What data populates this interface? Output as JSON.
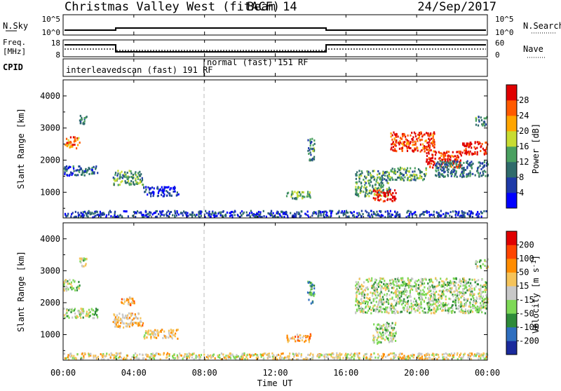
{
  "header": {
    "title": "Christmas Valley West (fitACF)",
    "beam": "Beam 14",
    "date": "24/Sep/2017"
  },
  "noise_panel": {
    "left_label": "N.Sky",
    "right_label": "N.Search",
    "left_ticks": [
      "10^5",
      "10^0"
    ],
    "right_ticks": [
      "10^5",
      "10^0"
    ]
  },
  "freq_panel": {
    "left_label_line1": "Freq.",
    "left_label_line2": "[MHz]",
    "right_label": "Nave",
    "left_ticks": [
      "18",
      "8"
    ],
    "right_ticks": [
      "60",
      "0"
    ]
  },
  "cpid_panel": {
    "label": "CPID",
    "segments": [
      {
        "label": "interleavedscan (fast) 191 RF",
        "start_h": 0,
        "end_h": 8
      },
      {
        "label": "normal (fast) 151 RF",
        "start_h": 8,
        "end_h": 24
      }
    ]
  },
  "power_colorbar": {
    "label": "Power [dB]",
    "ticks": [
      "4",
      "8",
      "12",
      "16",
      "20",
      "24",
      "28"
    ],
    "colors": [
      "#0000ff",
      "#1e3aa8",
      "#2f6b6b",
      "#4aa060",
      "#c8dc32",
      "#ffa500",
      "#ff5a00",
      "#e00000"
    ]
  },
  "velocity_colorbar": {
    "label": "Velocity [m s",
    "label_sup": "-1",
    "label_end": "]",
    "ticks": [
      "200",
      "100",
      "50",
      "15",
      "-15",
      "-50",
      "-100",
      "-200"
    ],
    "colors": [
      "#1a2a9c",
      "#2f6fbf",
      "#2e8b3a",
      "#7ed957",
      "#c8c8c8",
      "#f5c35a",
      "#ff8c00",
      "#ff4500",
      "#e00000"
    ]
  },
  "x_axis": {
    "label": "Time UT",
    "ticks": [
      "00:00",
      "04:00",
      "08:00",
      "12:00",
      "16:00",
      "20:00",
      "00:00"
    ]
  },
  "chart_data": [
    {
      "type": "heatmap",
      "title": "Power",
      "ylabel": "Slant Range [km]",
      "ylim": [
        200,
        4500
      ],
      "xlim": [
        0,
        24
      ],
      "y_ticks": [
        1000,
        2000,
        3000,
        4000
      ],
      "regions": [
        {
          "t0": 0.0,
          "t1": 0.9,
          "r0": 2400,
          "r1": 2750,
          "level": 0.75
        },
        {
          "t0": 0.9,
          "t1": 1.3,
          "r0": 3150,
          "r1": 3450,
          "level": 0.35
        },
        {
          "t0": 0.0,
          "t1": 2.0,
          "r0": 1550,
          "r1": 1850,
          "level": 0.25
        },
        {
          "t0": 2.8,
          "t1": 4.5,
          "r0": 1250,
          "r1": 1700,
          "level": 0.4
        },
        {
          "t0": 4.5,
          "t1": 6.5,
          "r0": 900,
          "r1": 1200,
          "level": 0.15
        },
        {
          "t0": 12.6,
          "t1": 14.0,
          "r0": 800,
          "r1": 1050,
          "level": 0.45
        },
        {
          "t0": 13.8,
          "t1": 14.2,
          "r0": 2000,
          "r1": 2700,
          "level": 0.35
        },
        {
          "t0": 16.5,
          "t1": 18.5,
          "r0": 900,
          "r1": 1700,
          "level": 0.4
        },
        {
          "t0": 17.5,
          "t1": 18.8,
          "r0": 750,
          "r1": 1100,
          "level": 0.95
        },
        {
          "t0": 18.5,
          "t1": 21.0,
          "r0": 2300,
          "r1": 2900,
          "level": 0.85
        },
        {
          "t0": 20.5,
          "t1": 22.5,
          "r0": 1800,
          "r1": 2300,
          "level": 0.9
        },
        {
          "t0": 22.5,
          "t1": 24.0,
          "r0": 2200,
          "r1": 2600,
          "level": 0.95
        },
        {
          "t0": 18.5,
          "t1": 20.5,
          "r0": 1400,
          "r1": 1800,
          "level": 0.4
        },
        {
          "t0": 21.0,
          "t1": 24.0,
          "r0": 1500,
          "r1": 2000,
          "level": 0.3
        },
        {
          "t0": 23.3,
          "t1": 24.0,
          "r0": 3100,
          "r1": 3400,
          "level": 0.35
        },
        {
          "t0": 0.0,
          "t1": 24.0,
          "r0": 250,
          "r1": 450,
          "level": 0.2
        }
      ]
    },
    {
      "type": "heatmap",
      "title": "Velocity",
      "ylabel": "Slant Range [km]",
      "ylim": [
        200,
        4500
      ],
      "xlim": [
        0,
        24
      ],
      "y_ticks": [
        1000,
        2000,
        3000,
        4000
      ],
      "regions": [
        {
          "t0": 0.0,
          "t1": 0.9,
          "r0": 2400,
          "r1": 2750,
          "level": 0.45
        },
        {
          "t0": 0.9,
          "t1": 1.3,
          "r0": 3150,
          "r1": 3450,
          "level": 0.45
        },
        {
          "t0": 0.0,
          "t1": 2.0,
          "r0": 1550,
          "r1": 1850,
          "level": 0.45
        },
        {
          "t0": 3.2,
          "t1": 4.0,
          "r0": 1950,
          "r1": 2200,
          "level": 0.65
        },
        {
          "t0": 2.8,
          "t1": 4.5,
          "r0": 1250,
          "r1": 1700,
          "level": 0.62
        },
        {
          "t0": 4.5,
          "t1": 6.5,
          "r0": 900,
          "r1": 1200,
          "level": 0.6
        },
        {
          "t0": 12.6,
          "t1": 14.0,
          "r0": 800,
          "r1": 1050,
          "level": 0.7
        },
        {
          "t0": 13.8,
          "t1": 14.2,
          "r0": 2000,
          "r1": 2700,
          "level": 0.3
        },
        {
          "t0": 16.5,
          "t1": 24.0,
          "r0": 1700,
          "r1": 2800,
          "level": 0.45
        },
        {
          "t0": 17.5,
          "t1": 18.8,
          "r0": 750,
          "r1": 1400,
          "level": 0.45
        },
        {
          "t0": 23.3,
          "t1": 24.0,
          "r0": 3100,
          "r1": 3400,
          "level": 0.45
        },
        {
          "t0": 0.0,
          "t1": 24.0,
          "r0": 250,
          "r1": 450,
          "level": 0.55
        }
      ]
    }
  ]
}
